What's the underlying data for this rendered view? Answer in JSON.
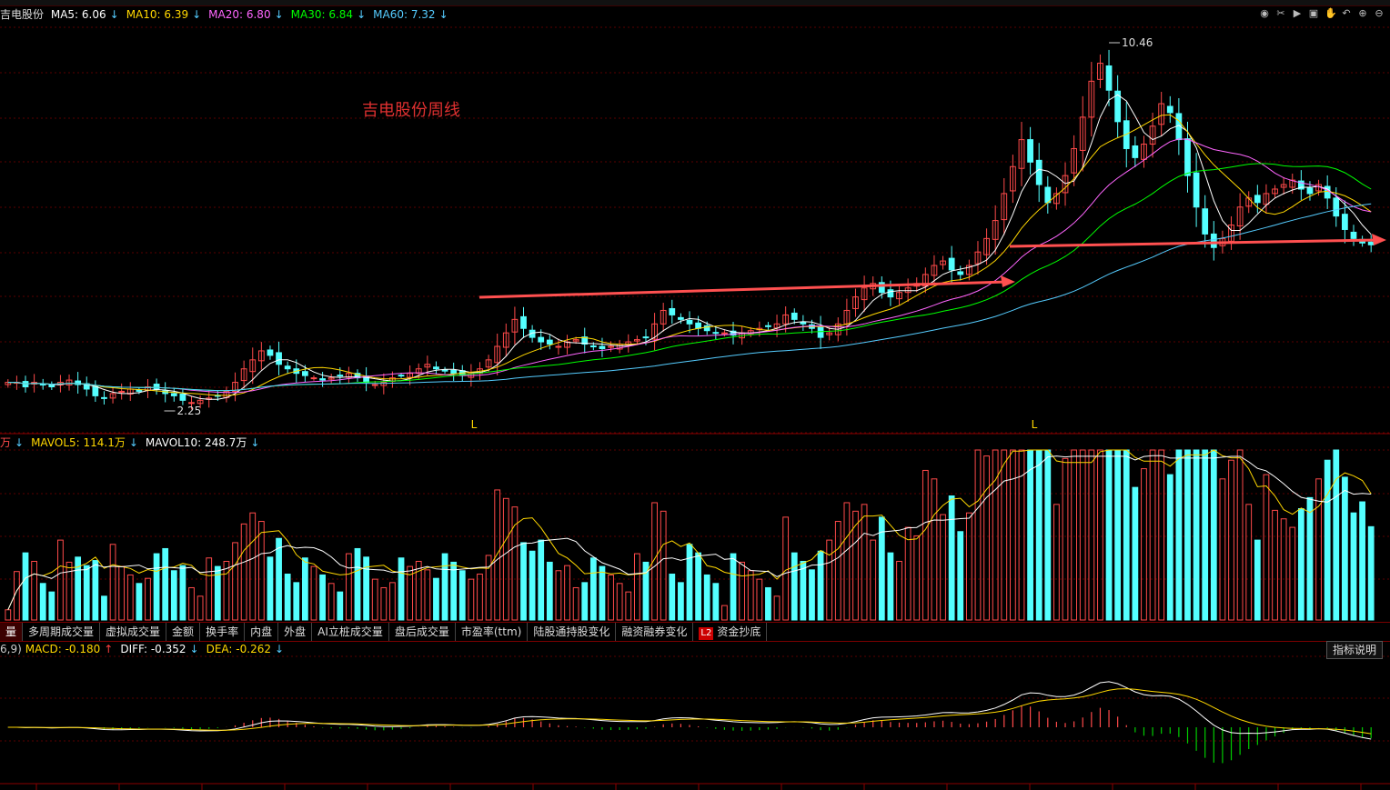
{
  "stock_name": "吉电股份",
  "annotation": "吉电股份周线",
  "price_legend": [
    {
      "label": "MA5: 6.06",
      "color": "#ffffff",
      "dir": "↓"
    },
    {
      "label": "MA10: 6.39",
      "color": "#ffd700",
      "dir": "↓"
    },
    {
      "label": "MA20: 6.80",
      "color": "#ff66ff",
      "dir": "↓"
    },
    {
      "label": "MA30: 6.84",
      "color": "#00ff00",
      "dir": "↓"
    },
    {
      "label": "MA60: 7.32",
      "color": "#55ccff",
      "dir": "↓"
    }
  ],
  "volume_legend": {
    "prefix": "万",
    "items": [
      {
        "label": "MAVOL5: 114.1万",
        "color": "#ffd700",
        "dir": "↓"
      },
      {
        "label": "MAVOL10: 248.7万",
        "color": "#ffffff",
        "dir": "↓"
      }
    ]
  },
  "macd_legend": {
    "prefix": "6,9)",
    "items": [
      {
        "label": "MACD: -0.180",
        "color": "#ffd700",
        "dir": "↑",
        "dir_color": "#ff4040"
      },
      {
        "label": "DIFF: -0.352",
        "color": "#ffffff",
        "dir": "↓",
        "dir_color": "#55ccff"
      },
      {
        "label": "DEA: -0.262",
        "color": "#ffd700",
        "dir": "↓",
        "dir_color": "#55ccff"
      }
    ]
  },
  "tabs": [
    "量",
    "多周期成交量",
    "虚拟成交量",
    "金额",
    "换手率",
    "内盘",
    "外盘",
    "AI立桩成交量",
    "盘后成交量",
    "市盈率(ttm)",
    "陆股通持股变化",
    "融资融券变化",
    "资金抄底"
  ],
  "tab_badge": "L2",
  "help_button": "指标说明",
  "high_label": "10.46",
  "low_label": "2.25",
  "markers": [
    "L",
    "L"
  ],
  "colors": {
    "up": "#ff4a4a",
    "down": "#54ffff",
    "grid": "#5a0000",
    "trendline": "#ff5050"
  },
  "chart_data": {
    "type": "candlestick",
    "ylim": [
      2.0,
      10.9
    ],
    "high": 10.46,
    "low": 2.25,
    "series": [
      {
        "name": "MA5",
        "value": 6.06
      },
      {
        "name": "MA10",
        "value": 6.39
      },
      {
        "name": "MA20",
        "value": 6.8
      },
      {
        "name": "MA30",
        "value": 6.84
      },
      {
        "name": "MA60",
        "value": 7.32
      }
    ],
    "closes": [
      3.0,
      3.0,
      2.9,
      3.0,
      2.95,
      2.9,
      3.0,
      3.05,
      2.95,
      2.85,
      2.7,
      2.65,
      2.75,
      2.8,
      2.85,
      2.8,
      2.9,
      2.85,
      2.75,
      2.7,
      2.6,
      2.55,
      2.6,
      2.65,
      2.7,
      2.8,
      3.0,
      3.3,
      3.5,
      3.7,
      3.6,
      3.4,
      3.3,
      3.2,
      3.15,
      3.1,
      3.05,
      3.1,
      3.15,
      3.2,
      3.1,
      3.0,
      2.95,
      3.0,
      3.1,
      3.15,
      3.2,
      3.3,
      3.4,
      3.3,
      3.25,
      3.2,
      3.15,
      3.2,
      3.3,
      3.5,
      3.8,
      4.1,
      4.4,
      4.2,
      4.0,
      3.9,
      3.85,
      3.8,
      3.9,
      3.95,
      3.85,
      3.8,
      3.75,
      3.8,
      3.85,
      3.9,
      3.95,
      4.0,
      4.3,
      4.6,
      4.5,
      4.4,
      4.3,
      4.2,
      4.15,
      4.1,
      4.1,
      4.05,
      4.1,
      4.15,
      4.2,
      4.25,
      4.3,
      4.5,
      4.4,
      4.3,
      4.2,
      4.0,
      4.1,
      4.3,
      4.6,
      4.9,
      5.1,
      5.2,
      5.0,
      4.9,
      5.0,
      5.1,
      5.2,
      5.4,
      5.6,
      5.7,
      5.5,
      5.4,
      5.6,
      5.9,
      6.2,
      6.6,
      7.2,
      7.8,
      8.4,
      7.9,
      7.4,
      7.0,
      7.2,
      7.6,
      8.2,
      8.9,
      9.7,
      10.1,
      9.5,
      8.8,
      8.2,
      8.0,
      8.3,
      8.7,
      9.2,
      9.0,
      8.4,
      7.6,
      6.9,
      6.3,
      6.0,
      6.2,
      6.5,
      6.9,
      7.1,
      7.0,
      7.2,
      7.3,
      7.4,
      7.5,
      7.3,
      7.2,
      7.4,
      7.1,
      6.7,
      6.4,
      6.2,
      6.1,
      6.06
    ],
    "volume": {
      "ylim": [
        0,
        1000
      ],
      "mavol5": 114.1,
      "mavol10": 248.7
    },
    "macd": {
      "macd": -0.18,
      "diff": -0.352,
      "dea": -0.262
    }
  }
}
